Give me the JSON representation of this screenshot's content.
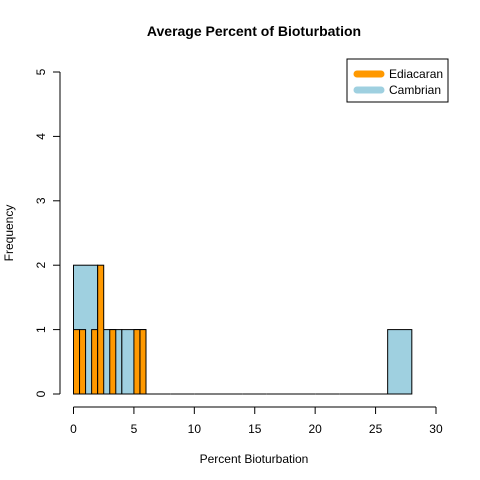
{
  "chart_data": {
    "type": "bar",
    "title": "Average Percent of Bioturbation",
    "xlabel": "Percent Bioturbation",
    "ylabel": "Frequency",
    "xlim": [
      0,
      30
    ],
    "ylim": [
      0,
      5
    ],
    "x_ticks": [
      "0",
      "5",
      "10",
      "15",
      "20",
      "25",
      "30"
    ],
    "y_ticks": [
      "0",
      "1",
      "2",
      "3",
      "4",
      "5"
    ],
    "legend_position": "top-right",
    "grid": false,
    "series": [
      {
        "name": "Cambrian",
        "color": "#9fd0e0",
        "bin_width": 2,
        "bins": [
          {
            "start": 0,
            "count": 2
          },
          {
            "start": 2,
            "count": 1
          },
          {
            "start": 4,
            "count": 1
          },
          {
            "start": 6,
            "count": 0
          },
          {
            "start": 8,
            "count": 0
          },
          {
            "start": 10,
            "count": 0
          },
          {
            "start": 12,
            "count": 0
          },
          {
            "start": 14,
            "count": 0
          },
          {
            "start": 16,
            "count": 0
          },
          {
            "start": 18,
            "count": 0
          },
          {
            "start": 20,
            "count": 0
          },
          {
            "start": 22,
            "count": 0
          },
          {
            "start": 24,
            "count": 0
          },
          {
            "start": 26,
            "count": 1
          }
        ]
      },
      {
        "name": "Ediacaran",
        "color": "#ff9900",
        "bin_width": 0.5,
        "bins": [
          {
            "start": 0,
            "count": 1
          },
          {
            "start": 0.5,
            "count": 1
          },
          {
            "start": 1,
            "count": 0
          },
          {
            "start": 1.5,
            "count": 1
          },
          {
            "start": 2,
            "count": 2
          },
          {
            "start": 2.5,
            "count": 0
          },
          {
            "start": 3,
            "count": 1
          },
          {
            "start": 3.5,
            "count": 0
          },
          {
            "start": 4,
            "count": 0
          },
          {
            "start": 4.5,
            "count": 0
          },
          {
            "start": 5,
            "count": 1
          },
          {
            "start": 5.5,
            "count": 1
          }
        ]
      }
    ]
  }
}
